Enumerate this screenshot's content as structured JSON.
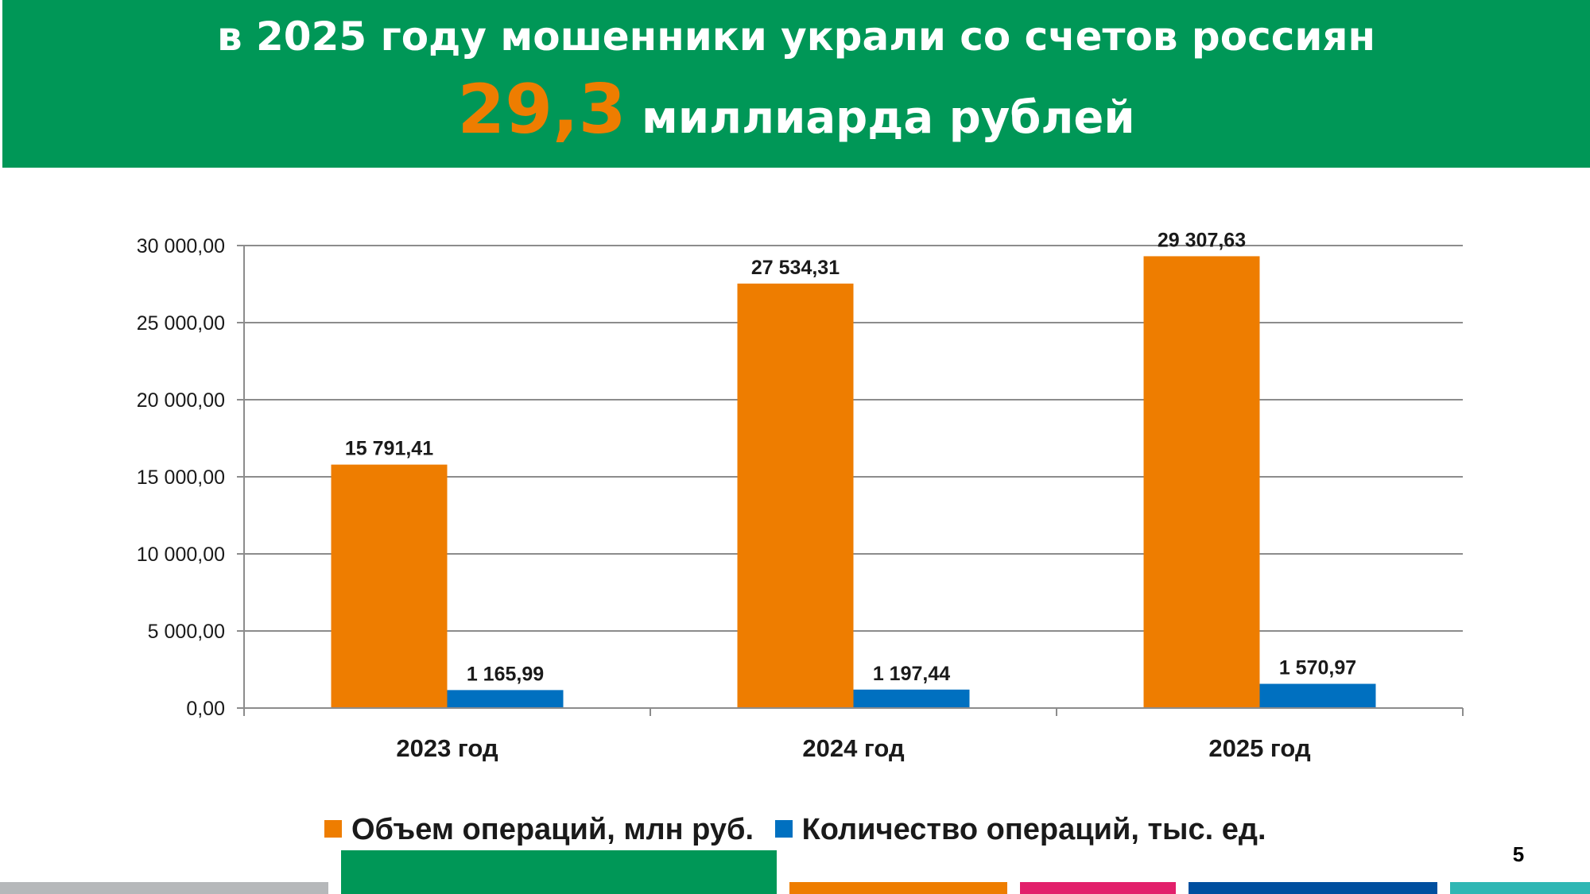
{
  "header": {
    "line1": "в 2025 году мошенники украли со счетов россиян",
    "big_number": "29,3",
    "line2_rest": " миллиарда рублей"
  },
  "colors": {
    "header_bg": "#009757",
    "highlight": "#ee7d00",
    "series_volume": "#ee7d00",
    "series_count": "#0070c0",
    "strip_gray": "#b6b8ba",
    "strip_green": "#009757",
    "strip_orange": "#ee7d00",
    "strip_pink": "#e2206b",
    "strip_navy": "#004f9f",
    "strip_teal": "#2fb7b4"
  },
  "chart_data": {
    "type": "bar",
    "categories": [
      "2023 год",
      "2024 год",
      "2025 год"
    ],
    "series": [
      {
        "name": "Объем операций, млн руб.",
        "values": [
          15791.41,
          27534.31,
          29307.63
        ],
        "labels": [
          "15 791,41",
          "27 534,31",
          "29 307,63"
        ]
      },
      {
        "name": "Количество операций, тыс. ед.",
        "values": [
          1165.99,
          1197.44,
          1570.97
        ],
        "labels": [
          "1 165,99",
          "1 197,44",
          "1 570,97"
        ]
      }
    ],
    "ylim": [
      0,
      30000
    ],
    "y_ticks": [
      0,
      5000,
      10000,
      15000,
      20000,
      25000,
      30000
    ],
    "y_tick_labels": [
      "0,00",
      "5 000,00",
      "10 000,00",
      "15 000,00",
      "20 000,00",
      "25 000,00",
      "30 000,00"
    ],
    "grid": true,
    "legend_position": "bottom",
    "title": "",
    "xlabel": "",
    "ylabel": ""
  },
  "footer": {
    "page_number": "5"
  }
}
